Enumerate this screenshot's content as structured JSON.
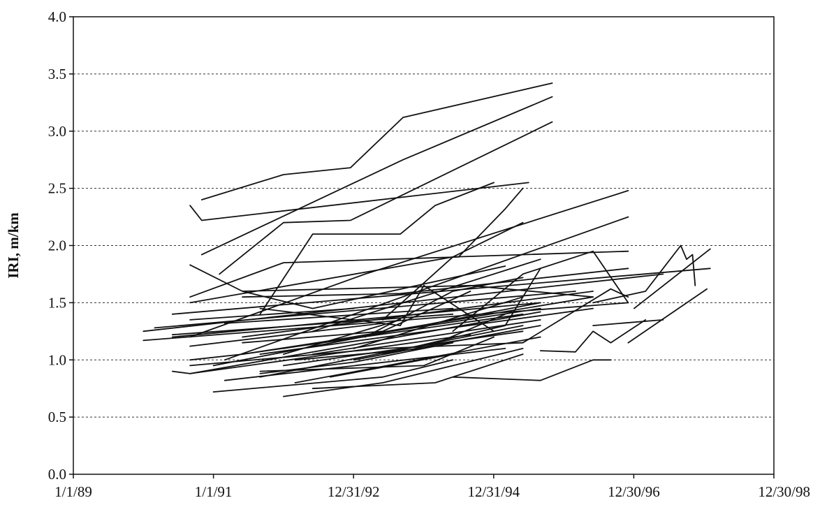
{
  "chart_data": {
    "type": "line",
    "title": "",
    "xlabel": "",
    "ylabel": "IRI, m/km",
    "xlim": [
      "1989-01-01",
      "1998-12-30"
    ],
    "ylim": [
      0,
      4
    ],
    "x_ticks": [
      "1/1/89",
      "1/1/91",
      "12/31/92",
      "12/31/94",
      "12/30/96",
      "12/30/98"
    ],
    "x_tick_dates": [
      "1989-01-01",
      "1991-01-01",
      "1992-12-31",
      "1994-12-31",
      "1996-12-30",
      "1998-12-30"
    ],
    "y_ticks": [
      "0.0",
      "0.5",
      "1.0",
      "1.5",
      "2.0",
      "2.5",
      "3.0",
      "3.5",
      "4.0"
    ],
    "y_tick_values": [
      0,
      0.5,
      1.0,
      1.5,
      2.0,
      2.5,
      3.0,
      3.5,
      4.0
    ],
    "grid": "horizontal dashed",
    "line_color": "#111111",
    "series": [
      {
        "x": [
          "1990-11-01",
          "1992-01-01",
          "1992-12-15",
          "1993-09-15",
          "1995-11-01"
        ],
        "y": [
          2.4,
          2.62,
          2.68,
          3.12,
          3.42
        ]
      },
      {
        "x": [
          "1990-11-01",
          "1993-09-15",
          "1995-11-01"
        ],
        "y": [
          1.92,
          2.75,
          3.3
        ]
      },
      {
        "x": [
          "1991-02-01",
          "1992-01-01",
          "1992-12-15",
          "1995-11-01"
        ],
        "y": [
          1.75,
          2.2,
          2.22,
          3.08
        ]
      },
      {
        "x": [
          "1990-09-01",
          "1990-11-01",
          "1995-07-01"
        ],
        "y": [
          2.35,
          2.22,
          2.55
        ]
      },
      {
        "x": [
          "1990-09-01",
          "1992-01-01",
          "1994-07-01",
          "1995-03-01",
          "1995-06-01"
        ],
        "y": [
          1.55,
          1.85,
          1.9,
          2.32,
          2.5
        ]
      },
      {
        "x": [
          "1991-09-01",
          "1992-06-01",
          "1993-09-01",
          "1994-03-01",
          "1995-01-01"
        ],
        "y": [
          1.4,
          2.1,
          2.1,
          2.35,
          2.55
        ]
      },
      {
        "x": [
          "1990-09-01",
          "1991-06-01",
          "1992-06-01",
          "1995-03-01"
        ],
        "y": [
          1.83,
          1.6,
          1.45,
          1.82
        ]
      },
      {
        "x": [
          "1990-09-01",
          "1993-03-01",
          "1996-12-01"
        ],
        "y": [
          1.2,
          1.75,
          2.48
        ]
      },
      {
        "x": [
          "1991-03-01",
          "1996-12-01"
        ],
        "y": [
          1.0,
          2.25
        ]
      },
      {
        "x": [
          "1992-06-01",
          "1995-09-01"
        ],
        "y": [
          1.25,
          1.88
        ]
      },
      {
        "x": [
          "1993-06-01",
          "1994-06-01",
          "1995-06-01"
        ],
        "y": [
          1.35,
          1.9,
          2.2
        ]
      },
      {
        "x": [
          "1993-01-01",
          "1995-06-01"
        ],
        "y": [
          1.1,
          1.55
        ]
      },
      {
        "x": [
          "1990-06-01",
          "1990-09-01",
          "1995-09-01"
        ],
        "y": [
          0.9,
          0.88,
          1.42
        ]
      },
      {
        "x": [
          "1990-09-01",
          "1991-06-01",
          "1995-09-01"
        ],
        "y": [
          1.0,
          1.05,
          1.45
        ]
      },
      {
        "x": [
          "1991-09-01",
          "1993-09-01",
          "1994-01-01",
          "1995-01-01"
        ],
        "y": [
          1.45,
          1.3,
          1.65,
          1.25
        ]
      },
      {
        "x": [
          "1994-06-01",
          "1995-06-01",
          "1996-06-01",
          "1996-12-01"
        ],
        "y": [
          1.25,
          1.75,
          1.95,
          1.5
        ]
      },
      {
        "x": [
          "1995-06-01",
          "1996-09-01",
          "1996-12-01"
        ],
        "y": [
          1.15,
          1.62,
          1.55
        ]
      },
      {
        "x": [
          "1994-06-01",
          "1995-09-01",
          "1996-06-01",
          "1996-09-01"
        ],
        "y": [
          0.85,
          0.82,
          1.0,
          1.0
        ]
      },
      {
        "x": [
          "1995-09-01",
          "1996-03-01",
          "1996-06-01",
          "1996-09-01",
          "1997-03-01"
        ],
        "y": [
          1.08,
          1.07,
          1.25,
          1.15,
          1.35
        ]
      },
      {
        "x": [
          "1996-06-01",
          "1997-03-01",
          "1997-09-01",
          "1997-10-01",
          "1997-11-01",
          "1997-11-15"
        ],
        "y": [
          1.5,
          1.6,
          2.0,
          1.88,
          1.92,
          1.65
        ]
      },
      {
        "x": [
          "1996-12-01",
          "1998-01-15"
        ],
        "y": [
          1.15,
          1.62
        ]
      },
      {
        "x": [
          "1997-01-01",
          "1998-02-01"
        ],
        "y": [
          1.45,
          1.97
        ]
      },
      {
        "x": [
          "1996-06-01",
          "1997-06-01"
        ],
        "y": [
          1.3,
          1.35
        ]
      },
      {
        "x": [
          "1990-06-01",
          "1998-02-01"
        ],
        "y": [
          1.4,
          1.8
        ]
      },
      {
        "x": [
          "1990-01-01",
          "1997-06-01"
        ],
        "y": [
          1.25,
          1.75
        ]
      },
      {
        "x": [
          "1990-01-01",
          "1996-12-01"
        ],
        "y": [
          1.17,
          1.5
        ]
      },
      {
        "x": [
          "1991-06-01",
          "1993-09-01",
          "1996-12-01"
        ],
        "y": [
          1.55,
          1.58,
          1.8
        ]
      },
      {
        "x": [
          "1990-09-01",
          "1994-06-01",
          "1996-12-01"
        ],
        "y": [
          1.5,
          1.9,
          1.95
        ]
      },
      {
        "x": [
          "1991-06-01",
          "1994-09-01",
          "1996-06-01"
        ],
        "y": [
          1.6,
          1.65,
          1.55
        ]
      },
      {
        "x": [
          "1991-06-01",
          "1996-06-01"
        ],
        "y": [
          1.2,
          1.6
        ]
      },
      {
        "x": [
          "1991-09-01",
          "1996-06-01"
        ],
        "y": [
          1.05,
          1.45
        ]
      },
      {
        "x": [
          "1992-01-01",
          "1996-06-01"
        ],
        "y": [
          1.1,
          1.55
        ]
      },
      {
        "x": [
          "1990-03-01",
          "1996-03-01"
        ],
        "y": [
          1.28,
          1.6
        ]
      },
      {
        "x": [
          "1990-06-01",
          "1995-09-01"
        ],
        "y": [
          1.2,
          1.5
        ]
      },
      {
        "x": [
          "1991-01-01",
          "1995-09-01"
        ],
        "y": [
          0.95,
          1.5
        ]
      },
      {
        "x": [
          "1991-06-01",
          "1995-06-01"
        ],
        "y": [
          1.05,
          1.4
        ]
      },
      {
        "x": [
          "1991-09-01",
          "1995-06-01"
        ],
        "y": [
          0.85,
          1.3
        ]
      },
      {
        "x": [
          "1992-03-01",
          "1995-09-01"
        ],
        "y": [
          0.8,
          1.2
        ]
      },
      {
        "x": [
          "1991-03-01",
          "1995-03-01"
        ],
        "y": [
          0.82,
          1.1
        ]
      },
      {
        "x": [
          "1990-09-01",
          "1993-06-01",
          "1995-06-01"
        ],
        "y": [
          0.95,
          1.1,
          1.15
        ]
      },
      {
        "x": [
          "1990-09-01",
          "1994-09-01"
        ],
        "y": [
          0.88,
          1.22
        ]
      },
      {
        "x": [
          "1991-01-01",
          "1993-06-01",
          "1994-06-01"
        ],
        "y": [
          0.72,
          0.85,
          1.0
        ]
      },
      {
        "x": [
          "1991-09-01",
          "1994-01-01",
          "1995-01-01"
        ],
        "y": [
          0.9,
          0.95,
          1.2
        ]
      },
      {
        "x": [
          "1992-01-01",
          "1993-06-01",
          "1995-06-01"
        ],
        "y": [
          0.68,
          0.8,
          1.1
        ]
      },
      {
        "x": [
          "1992-01-01",
          "1995-06-01"
        ],
        "y": [
          0.95,
          1.25
        ]
      },
      {
        "x": [
          "1992-06-01",
          "1994-03-01",
          "1995-06-01"
        ],
        "y": [
          0.75,
          0.8,
          1.05
        ]
      },
      {
        "x": [
          "1992-06-01",
          "1995-09-01"
        ],
        "y": [
          1.05,
          1.35
        ]
      },
      {
        "x": [
          "1993-01-01",
          "1995-09-01"
        ],
        "y": [
          1.0,
          1.3
        ]
      },
      {
        "x": [
          "1990-06-01",
          "1994-06-01"
        ],
        "y": [
          1.22,
          1.4
        ]
      },
      {
        "x": [
          "1991-03-01",
          "1994-06-01"
        ],
        "y": [
          1.32,
          1.45
        ]
      },
      {
        "x": [
          "1991-06-01",
          "1993-06-01",
          "1994-09-01"
        ],
        "y": [
          1.15,
          1.25,
          1.6
        ]
      },
      {
        "x": [
          "1992-03-01",
          "1994-01-01",
          "1995-03-01"
        ],
        "y": [
          1.0,
          1.1,
          1.4
        ]
      },
      {
        "x": [
          "1993-06-01",
          "1995-03-01",
          "1995-09-01"
        ],
        "y": [
          1.05,
          1.3,
          1.8
        ]
      },
      {
        "x": [
          "1993-03-01",
          "1994-06-01",
          "1995-06-01"
        ],
        "y": [
          1.2,
          1.6,
          1.72
        ]
      },
      {
        "x": [
          "1990-09-01",
          "1993-06-01"
        ],
        "y": [
          1.12,
          1.32
        ]
      },
      {
        "x": [
          "1991-09-01",
          "1993-01-01",
          "1994-06-01"
        ],
        "y": [
          0.88,
          0.98,
          1.15
        ]
      },
      {
        "x": [
          "1992-09-01",
          "1994-06-01"
        ],
        "y": [
          0.85,
          1.05
        ]
      },
      {
        "x": [
          "1992-01-01",
          "1993-09-01"
        ],
        "y": [
          1.05,
          1.35
        ]
      },
      {
        "x": [
          "1990-09-01",
          "1993-01-01"
        ],
        "y": [
          1.35,
          1.45
        ]
      }
    ]
  }
}
